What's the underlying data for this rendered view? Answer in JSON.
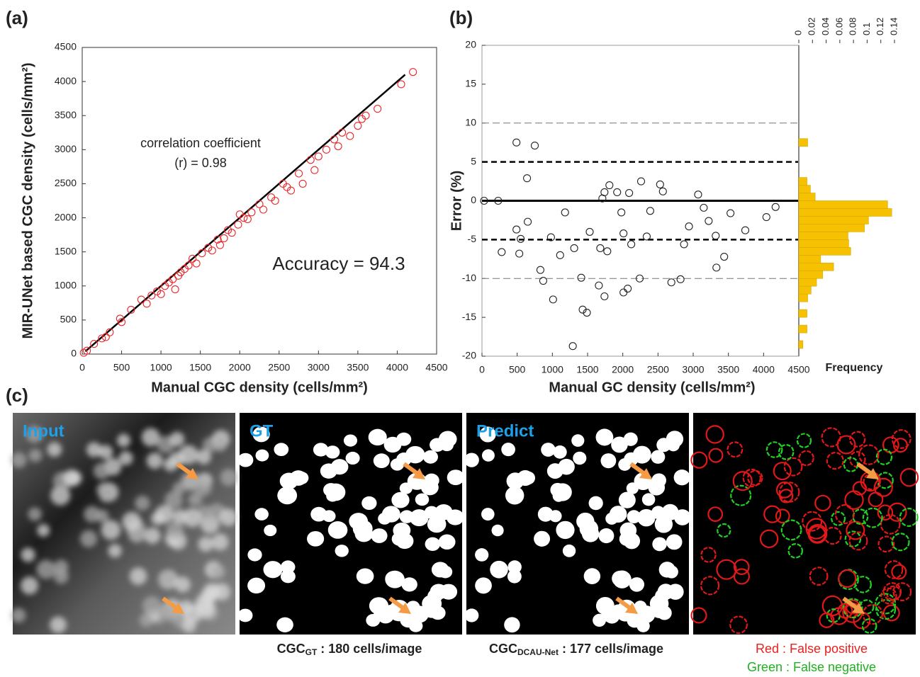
{
  "panel_labels": [
    "(a)",
    "(b)",
    "(c)"
  ],
  "chart_data": [
    {
      "type": "scatter",
      "xlabel": "Manual CGC density (cells/mm²)",
      "ylabel": "MIR-UNet based  CGC density (cells/mm²)",
      "xlim": [
        0,
        4500
      ],
      "ylim": [
        0,
        4500
      ],
      "xticks": [
        0,
        500,
        1000,
        1500,
        2000,
        2500,
        3000,
        3500,
        4000,
        4500
      ],
      "yticks": [
        0,
        500,
        1000,
        1500,
        2000,
        2500,
        3000,
        3500,
        4000,
        4500
      ],
      "color": "#e8282b",
      "x": [
        20,
        60,
        150,
        250,
        300,
        350,
        480,
        500,
        620,
        750,
        820,
        880,
        950,
        1000,
        1050,
        1100,
        1150,
        1180,
        1220,
        1250,
        1300,
        1350,
        1400,
        1450,
        1520,
        1600,
        1650,
        1720,
        1750,
        1800,
        1850,
        1900,
        1980,
        2000,
        2050,
        2100,
        2150,
        2250,
        2300,
        2400,
        2450,
        2550,
        2600,
        2650,
        2750,
        2800,
        2900,
        2950,
        3000,
        3100,
        3200,
        3250,
        3300,
        3400,
        3500,
        3550,
        3600,
        3750,
        4050,
        4200
      ],
      "values": [
        20,
        50,
        150,
        230,
        250,
        320,
        520,
        470,
        650,
        800,
        740,
        860,
        920,
        880,
        1000,
        1050,
        1100,
        950,
        1150,
        1200,
        1250,
        1300,
        1400,
        1330,
        1480,
        1560,
        1520,
        1680,
        1600,
        1700,
        1820,
        1780,
        1900,
        2050,
        2000,
        1980,
        2080,
        2200,
        2120,
        2300,
        2250,
        2500,
        2450,
        2400,
        2650,
        2500,
        2850,
        2700,
        2900,
        3000,
        3150,
        3050,
        3250,
        3200,
        3350,
        3450,
        3500,
        3600,
        3960,
        4140
      ],
      "fit_line": {
        "x": [
          40,
          4100
        ],
        "y": [
          40,
          4100
        ],
        "color": "#000000"
      },
      "annotations": [
        "correlation coefficient",
        "(r) = 0.98",
        "Accuracy = 94.3"
      ]
    },
    {
      "type": "scatter",
      "xlabel": "Manual GC density (cells/mm²)",
      "ylabel": "Error (%)",
      "xlim": [
        0,
        4500
      ],
      "ylim": [
        -20,
        20
      ],
      "xticks": [
        0,
        500,
        1000,
        1500,
        2000,
        2500,
        3000,
        3500,
        4000,
        4500
      ],
      "yticks": [
        -20,
        -15,
        -10,
        -5,
        0,
        5,
        10,
        15,
        20
      ],
      "color": "#222222",
      "x": [
        30,
        230,
        490,
        750,
        640,
        280,
        530,
        490,
        650,
        550,
        830,
        870,
        1010,
        1110,
        1290,
        980,
        1180,
        1430,
        1490,
        1530,
        1680,
        1740,
        1660,
        1410,
        1780,
        1710,
        1810,
        1740,
        1920,
        1980,
        2010,
        2070,
        2090,
        2260,
        2240,
        2120,
        2340,
        2390,
        2530,
        2570,
        2690,
        2820,
        2870,
        2940,
        3070,
        3150,
        3320,
        3330,
        3440,
        3740,
        4040,
        4170,
        3530,
        3220,
        2010,
        1310
      ],
      "values": [
        0,
        0,
        7.5,
        7.1,
        2.9,
        -6.6,
        -6.8,
        -3.7,
        -2.7,
        -4.9,
        -8.9,
        -10.3,
        -12.7,
        -7,
        -18.7,
        -4.7,
        -1.5,
        -14,
        -14.4,
        -4,
        -6.1,
        -12.3,
        -10.9,
        -9.9,
        -6.5,
        0.3,
        2,
        1.1,
        1.1,
        -1.5,
        -11.8,
        -11.3,
        1,
        2.5,
        -10,
        -5.6,
        -4.6,
        -1.3,
        2.1,
        1.2,
        -10.5,
        -10.1,
        -5.6,
        -3.3,
        0.8,
        -0.9,
        -4.5,
        -8.6,
        -7.2,
        -3.8,
        -2.1,
        -0.8,
        -1.6,
        -2.6,
        -4.2,
        -6.1
      ],
      "hlines": [
        {
          "value": 0,
          "style": "solid"
        },
        {
          "value": 5,
          "style": "dashed-bold"
        },
        {
          "value": -5,
          "style": "dashed-bold"
        },
        {
          "value": 10,
          "style": "dashed"
        },
        {
          "value": -10,
          "style": "dashed"
        }
      ]
    },
    {
      "type": "histogram",
      "orientation": "horizontal",
      "xlabel": "Frequency",
      "xlim": [
        0,
        0.14
      ],
      "xticks": [
        0,
        0.02,
        0.04,
        0.06,
        0.08,
        0.1,
        0.12,
        0.14
      ],
      "ylim": [
        -20,
        20
      ],
      "color": "#f5c100",
      "bins": [
        -19,
        -18,
        -17,
        -16,
        -15,
        -14,
        -13,
        -12,
        -11,
        -10,
        -9,
        -8,
        -7,
        -6,
        -5,
        -4,
        -3,
        -2,
        -1,
        0,
        1,
        2,
        3,
        4,
        5,
        6,
        7,
        8
      ],
      "counts": [
        0.006,
        0,
        0.012,
        0,
        0.012,
        0,
        0.013,
        0.018,
        0.026,
        0.035,
        0.051,
        0.032,
        0.076,
        0.073,
        0.072,
        0.096,
        0.102,
        0.136,
        0.13,
        0.024,
        0.017,
        0.012,
        0,
        0,
        0,
        0,
        0.013
      ]
    }
  ],
  "figure_c": {
    "panel_titles": [
      "Input",
      "GT",
      "Predict"
    ],
    "captions": [
      {
        "main": "CGC",
        "sub": "GT",
        "rest": " : 180 cells/image"
      },
      {
        "main": "CGC",
        "sub": "DCAU-Net",
        "rest": " : 177 cells/image"
      }
    ],
    "legend": [
      "Red : False positive",
      "Green : False negative"
    ]
  }
}
